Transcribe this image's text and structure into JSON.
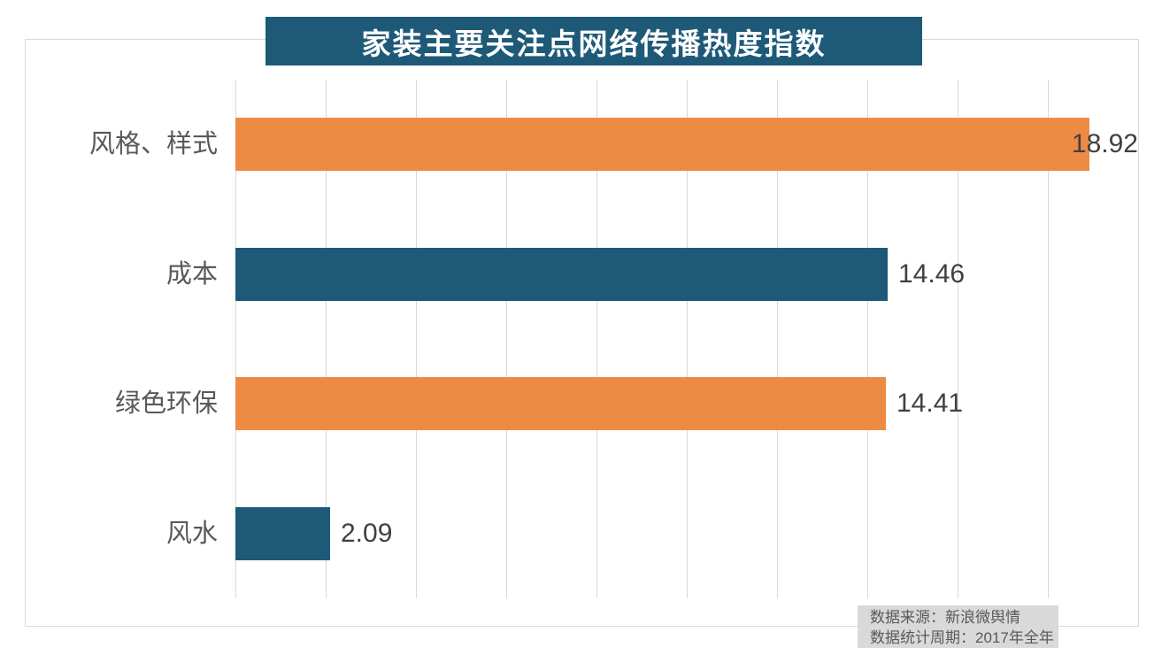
{
  "title": "家装主要关注点网络传播热度指数",
  "chart_data": {
    "type": "bar",
    "orientation": "horizontal",
    "title": "家装主要关注点网络传播热度指数",
    "categories": [
      "风格、样式",
      "成本",
      "绿色环保",
      "风水"
    ],
    "values": [
      18.92,
      14.46,
      14.41,
      2.09
    ],
    "value_labels": [
      "18.92",
      "14.46",
      "14.41",
      "2.09"
    ],
    "bar_colors": [
      "#ED8B45",
      "#1E5A78",
      "#ED8B45",
      "#1E5A78"
    ],
    "xlim": [
      0,
      20
    ],
    "gridline_step": 2,
    "grid": true,
    "legend": "none"
  },
  "source_note": {
    "line1": "数据来源：新浪微舆情",
    "line2": "数据统计周期：2017年全年"
  },
  "colors": {
    "banner_bg": "#1E5A78",
    "teal_bar": "#1E5A78",
    "orange_bar": "#ED8B45",
    "gridline": "#D9D9D9",
    "border": "#D9D9D9",
    "category_text": "#595959",
    "value_text": "#404040",
    "note_bg": "#D9D9D9",
    "note_text": "#595959"
  }
}
